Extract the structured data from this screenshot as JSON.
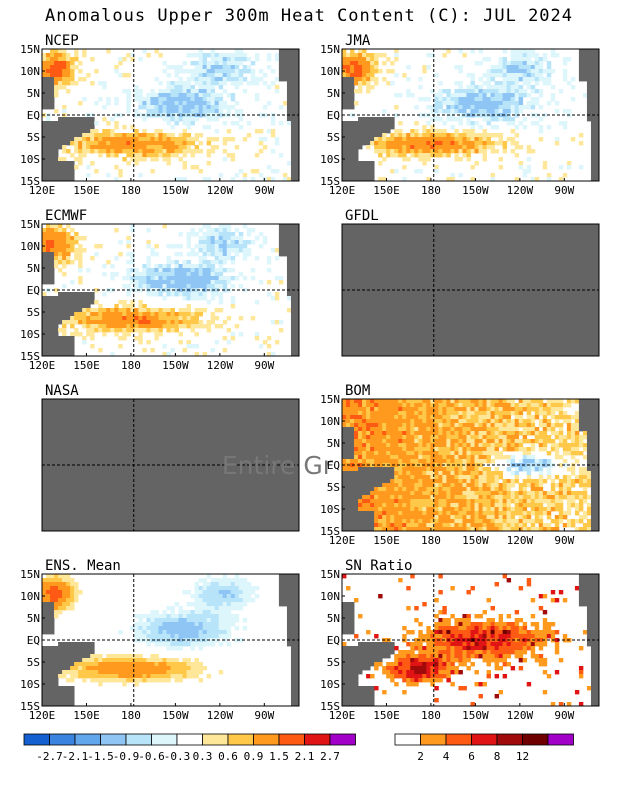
{
  "title": "Anomalous Upper 300m Heat Content (C): JUL 2024",
  "colors": {
    "land": "#646464",
    "missing": "#646464",
    "frame": "#000000",
    "anom_scale": [
      "#1560d0",
      "#3a84e0",
      "#62a6ec",
      "#8ec5f4",
      "#b8e4fa",
      "#dcf6fc",
      "#ffffff",
      "#ffe79a",
      "#ffc848",
      "#ff9a1e",
      "#ff5a14",
      "#e01414",
      "#a00a0a",
      "#6e0000",
      "#a200c8"
    ],
    "sn_scale": [
      "#ffffff",
      "#ff9a1e",
      "#ff5a14",
      "#e01414",
      "#a00a0a",
      "#6e0000",
      "#a200c8"
    ]
  },
  "axes": {
    "x_labels": [
      "120E",
      "150E",
      "180",
      "150W",
      "120W",
      "90W"
    ],
    "y_labels": [
      "15N",
      "10N",
      "5N",
      "EQ",
      "5S",
      "10S",
      "15S"
    ]
  },
  "panels": [
    {
      "title": "NCEP",
      "field": "model",
      "seed": 1
    },
    {
      "title": "JMA",
      "field": "model",
      "seed": 2
    },
    {
      "title": "ECMWF",
      "field": "model",
      "seed": 3
    },
    {
      "title": "GFDL",
      "field": "missing",
      "seed": 4
    },
    {
      "title": "NASA",
      "field": "missing",
      "seed": 5,
      "overlay_text": "Entire Gr"
    },
    {
      "title": "BOM",
      "field": "warm",
      "seed": 6
    },
    {
      "title": "ENS. Mean",
      "field": "mean",
      "seed": 7
    },
    {
      "title": "SN Ratio",
      "field": "sn",
      "seed": 8
    }
  ],
  "legend_anom": {
    "labels": [
      "-2.7",
      "-2.1",
      "-1.5",
      "-0.9",
      "-0.6",
      "-0.3",
      "0.3",
      "0.6",
      "0.9",
      "1.5",
      "2.1",
      "2.7"
    ]
  },
  "legend_sn": {
    "labels": [
      "2",
      "4",
      "6",
      "8",
      "12"
    ]
  }
}
